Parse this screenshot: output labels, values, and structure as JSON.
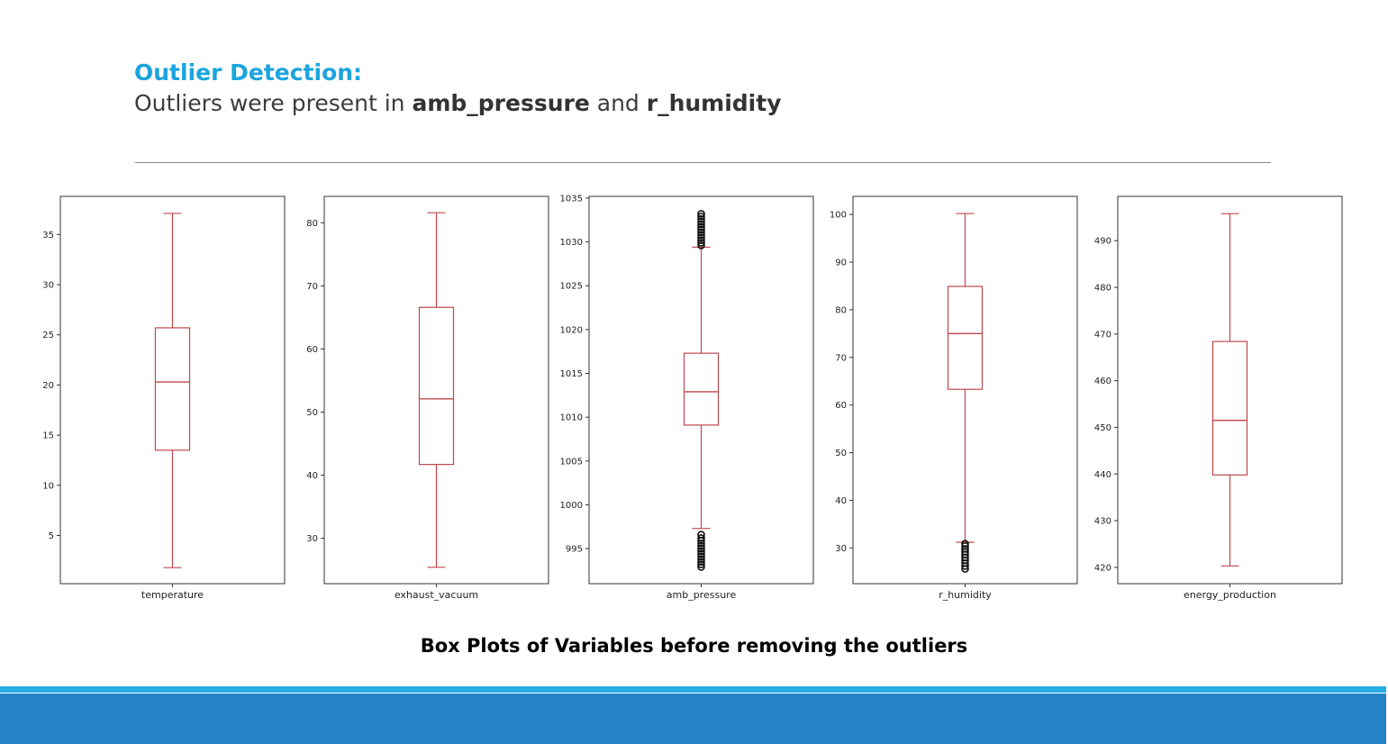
{
  "slide": {
    "heading": "Outlier Detection:",
    "sub_prefix": "Outliers were present in ",
    "sub_var1": "amb_pressure",
    "sub_mid": " and ",
    "sub_var2": "r_humidity",
    "caption": "Box Plots of Variables before removing the outliers"
  },
  "colors": {
    "heading": "#1ca4de",
    "box": "#c0474c",
    "band_light": "#26aee5",
    "band_dark": "#2583c8"
  },
  "chart_data": [
    {
      "type": "box",
      "xlabel": "temperature",
      "ylim": [
        0.2,
        38.8
      ],
      "yticks": [
        5,
        10,
        15,
        20,
        25,
        30,
        35
      ],
      "whisker_low": 1.8,
      "q1": 13.5,
      "median": 20.3,
      "q3": 25.7,
      "whisker_high": 37.1,
      "outliers": []
    },
    {
      "type": "box",
      "xlabel": "exhaust_vacuum",
      "ylim": [
        22.8,
        84.2
      ],
      "yticks": [
        30,
        40,
        50,
        60,
        70,
        80
      ],
      "whisker_low": 25.4,
      "q1": 41.7,
      "median": 52.1,
      "q3": 66.6,
      "whisker_high": 81.6,
      "outliers": []
    },
    {
      "type": "box",
      "xlabel": "amb_pressure",
      "ylim": [
        991,
        1035.2
      ],
      "yticks": [
        995,
        1000,
        1005,
        1010,
        1015,
        1020,
        1025,
        1030,
        1035
      ],
      "whisker_low": 997.3,
      "q1": 1009.1,
      "median": 1012.9,
      "q3": 1017.3,
      "whisker_high": 1029.4,
      "outliers": [
        992.9,
        993.2,
        993.5,
        993.8,
        994.1,
        994.4,
        994.7,
        995.0,
        995.3,
        995.6,
        995.9,
        996.2,
        996.6,
        1029.6,
        1029.9,
        1030.2,
        1030.5,
        1030.8,
        1031.1,
        1031.4,
        1031.7,
        1032.0,
        1032.3,
        1032.6,
        1032.9,
        1033.2
      ]
    },
    {
      "type": "box",
      "xlabel": "r_humidity",
      "ylim": [
        22.5,
        103.8
      ],
      "yticks": [
        30,
        40,
        50,
        60,
        70,
        80,
        90,
        100
      ],
      "whisker_low": 31.2,
      "q1": 63.3,
      "median": 75.0,
      "q3": 84.9,
      "whisker_high": 100.2,
      "outliers": [
        25.6,
        26.2,
        26.8,
        27.4,
        28.0,
        28.6,
        29.2,
        29.8,
        30.4,
        30.9
      ]
    },
    {
      "type": "box",
      "xlabel": "energy_production",
      "ylim": [
        416.5,
        499.5
      ],
      "yticks": [
        420,
        430,
        440,
        450,
        460,
        470,
        480,
        490
      ],
      "whisker_low": 420.3,
      "q1": 439.8,
      "median": 451.5,
      "q3": 468.4,
      "whisker_high": 495.8,
      "outliers": []
    }
  ]
}
